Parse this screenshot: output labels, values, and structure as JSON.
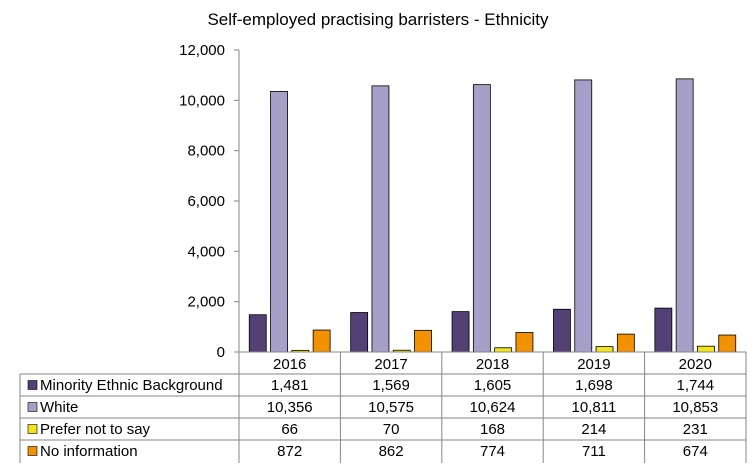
{
  "chart_data": {
    "type": "bar",
    "title": "Self-employed practising barristers - Ethnicity",
    "categories": [
      "2016",
      "2017",
      "2018",
      "2019",
      "2020"
    ],
    "ylim": [
      0,
      12000
    ],
    "yticks": [
      "0",
      "2,000",
      "4,000",
      "6,000",
      "8,000",
      "10,000",
      "12,000"
    ],
    "grid": false,
    "legend": "data-table-left",
    "series": [
      {
        "name": "Minority Ethnic Background",
        "color": "#534175",
        "values": [
          1481,
          1569,
          1605,
          1698,
          1744
        ],
        "labels": [
          "1,481",
          "1,569",
          "1,605",
          "1,698",
          "1,744"
        ]
      },
      {
        "name": "White",
        "color": "#a6a0c8",
        "values": [
          10356,
          10575,
          10624,
          10811,
          10853
        ],
        "labels": [
          "10,356",
          "10,575",
          "10,624",
          "10,811",
          "10,853"
        ]
      },
      {
        "name": "Prefer not to say",
        "color": "#f5e31a",
        "values": [
          66,
          70,
          168,
          214,
          231
        ],
        "labels": [
          "66",
          "70",
          "168",
          "214",
          "231"
        ]
      },
      {
        "name": "No information",
        "color": "#f39200",
        "values": [
          872,
          862,
          774,
          711,
          674
        ],
        "labels": [
          "872",
          "862",
          "774",
          "711",
          "674"
        ]
      }
    ]
  }
}
